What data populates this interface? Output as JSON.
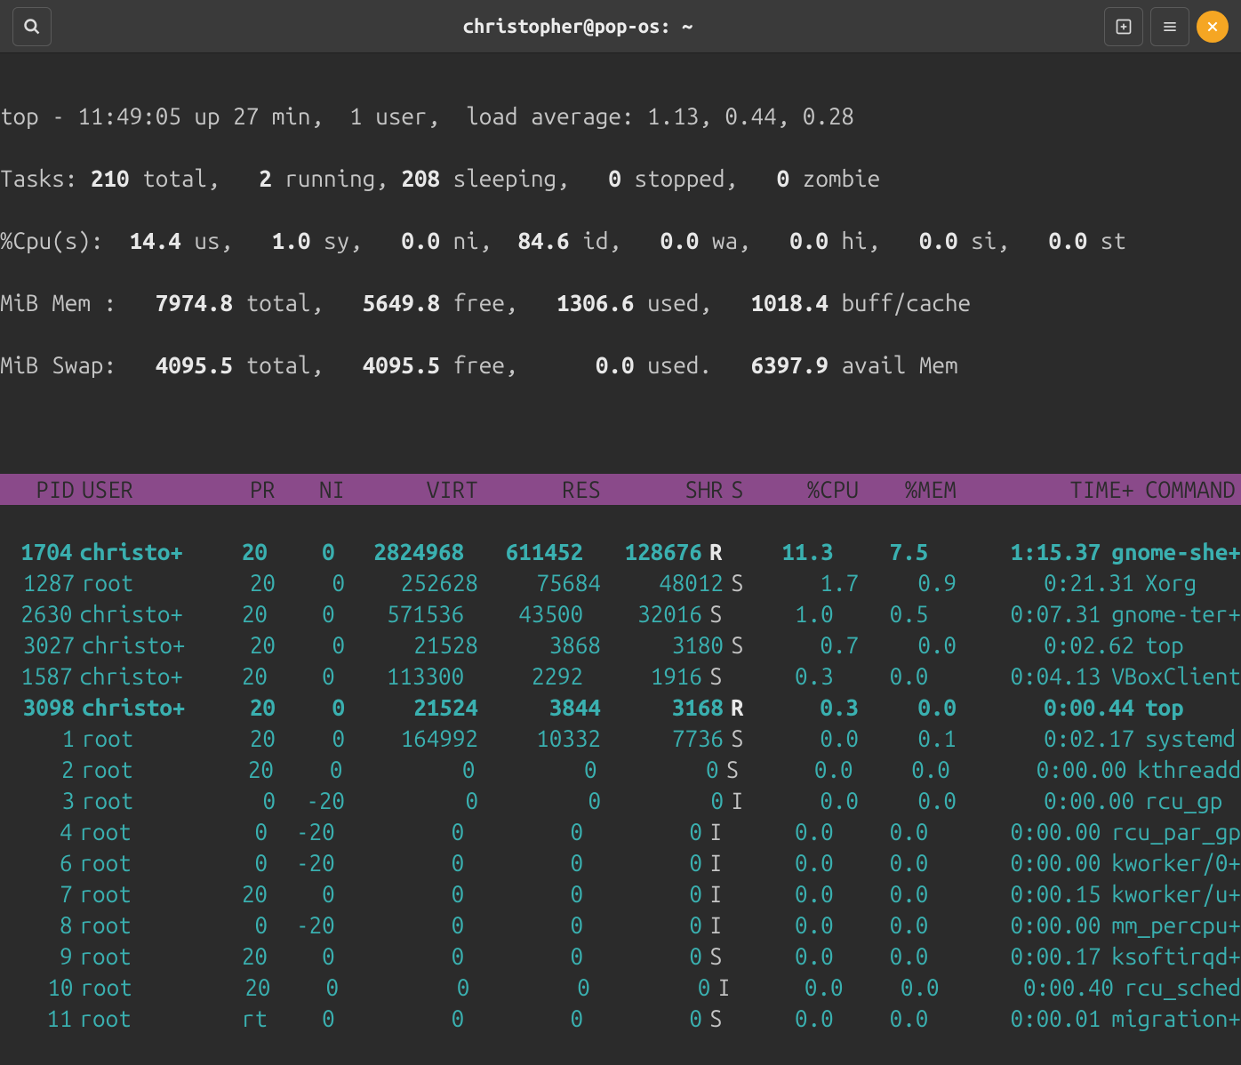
{
  "titlebar": {
    "title": "christopher@pop-os: ~"
  },
  "colors": {
    "background": "#2b2b2b",
    "titlebar_bg": "#3a3a3a",
    "header_bg": "#8a4a8a",
    "text": "#c5c5c5",
    "bright": "#e8e8e8",
    "cyan": "#3ab0b0",
    "close_btn": "#f5a623"
  },
  "summary": {
    "line1_prefix": "top - ",
    "time": "11:49:05",
    "up": " up 27 min,  ",
    "users": "1 user,",
    "load_label": "  load average: ",
    "load": "1.13, 0.44, 0.28",
    "tasks_label": "Tasks: ",
    "tasks_total": "210",
    "tasks_total_label": " total,   ",
    "tasks_running": "2",
    "tasks_running_label": " running, ",
    "tasks_sleeping": "208",
    "tasks_sleeping_label": " sleeping,   ",
    "tasks_stopped": "0",
    "tasks_stopped_label": " stopped,   ",
    "tasks_zombie": "0",
    "tasks_zombie_label": " zombie",
    "cpu_label": "%Cpu(s): ",
    "cpu_us": " 14.4",
    "cpu_us_label": " us,  ",
    "cpu_sy": " 1.0",
    "cpu_sy_label": " sy,  ",
    "cpu_ni": " 0.0",
    "cpu_ni_label": " ni, ",
    "cpu_id": " 84.6",
    "cpu_id_label": " id,  ",
    "cpu_wa": " 0.0",
    "cpu_wa_label": " wa,  ",
    "cpu_hi": " 0.0",
    "cpu_hi_label": " hi,  ",
    "cpu_si": " 0.0",
    "cpu_si_label": " si,  ",
    "cpu_st": " 0.0",
    "cpu_st_label": " st",
    "mem_label": "MiB Mem :   ",
    "mem_total": "7974.8",
    "mem_total_label": " total,   ",
    "mem_free": "5649.8",
    "mem_free_label": " free,   ",
    "mem_used": "1306.6",
    "mem_used_label": " used,   ",
    "mem_cache": "1018.4",
    "mem_cache_label": " buff/cache",
    "swap_label": "MiB Swap:   ",
    "swap_total": "4095.5",
    "swap_total_label": " total,   ",
    "swap_free": "4095.5",
    "swap_free_label": " free,      ",
    "swap_used": "0.0",
    "swap_used_label": " used.   ",
    "swap_avail": "6397.9",
    "swap_avail_label": " avail Mem"
  },
  "columns": {
    "pid": "PID",
    "user": "USER",
    "pr": "PR",
    "ni": "NI",
    "virt": "VIRT",
    "res": "RES",
    "shr": "SHR",
    "s": "S",
    "cpu": "%CPU",
    "mem": "%MEM",
    "time": "TIME+",
    "cmd": "COMMAND"
  },
  "processes": [
    {
      "pid": "1704",
      "user": "christo+",
      "pr": "20",
      "ni": "0",
      "virt": "2824968",
      "res": "611452",
      "shr": "128676",
      "s": "R",
      "cpu": "11.3",
      "mem": "7.5",
      "time": "1:15.37",
      "cmd": "gnome-she+",
      "running": true
    },
    {
      "pid": "1287",
      "user": "root",
      "pr": "20",
      "ni": "0",
      "virt": "252628",
      "res": "75684",
      "shr": "48012",
      "s": "S",
      "cpu": "1.7",
      "mem": "0.9",
      "time": "0:21.31",
      "cmd": "Xorg",
      "running": false
    },
    {
      "pid": "2630",
      "user": "christo+",
      "pr": "20",
      "ni": "0",
      "virt": "571536",
      "res": "43500",
      "shr": "32016",
      "s": "S",
      "cpu": "1.0",
      "mem": "0.5",
      "time": "0:07.31",
      "cmd": "gnome-ter+",
      "running": false
    },
    {
      "pid": "3027",
      "user": "christo+",
      "pr": "20",
      "ni": "0",
      "virt": "21528",
      "res": "3868",
      "shr": "3180",
      "s": "S",
      "cpu": "0.7",
      "mem": "0.0",
      "time": "0:02.62",
      "cmd": "top",
      "running": false
    },
    {
      "pid": "1587",
      "user": "christo+",
      "pr": "20",
      "ni": "0",
      "virt": "113300",
      "res": "2292",
      "shr": "1916",
      "s": "S",
      "cpu": "0.3",
      "mem": "0.0",
      "time": "0:04.13",
      "cmd": "VBoxClient",
      "running": false
    },
    {
      "pid": "3098",
      "user": "christo+",
      "pr": "20",
      "ni": "0",
      "virt": "21524",
      "res": "3844",
      "shr": "3168",
      "s": "R",
      "cpu": "0.3",
      "mem": "0.0",
      "time": "0:00.44",
      "cmd": "top",
      "running": true
    },
    {
      "pid": "1",
      "user": "root",
      "pr": "20",
      "ni": "0",
      "virt": "164992",
      "res": "10332",
      "shr": "7736",
      "s": "S",
      "cpu": "0.0",
      "mem": "0.1",
      "time": "0:02.17",
      "cmd": "systemd",
      "running": false
    },
    {
      "pid": "2",
      "user": "root",
      "pr": "20",
      "ni": "0",
      "virt": "0",
      "res": "0",
      "shr": "0",
      "s": "S",
      "cpu": "0.0",
      "mem": "0.0",
      "time": "0:00.00",
      "cmd": "kthreadd",
      "running": false
    },
    {
      "pid": "3",
      "user": "root",
      "pr": "0",
      "ni": "-20",
      "virt": "0",
      "res": "0",
      "shr": "0",
      "s": "I",
      "cpu": "0.0",
      "mem": "0.0",
      "time": "0:00.00",
      "cmd": "rcu_gp",
      "running": false
    },
    {
      "pid": "4",
      "user": "root",
      "pr": "0",
      "ni": "-20",
      "virt": "0",
      "res": "0",
      "shr": "0",
      "s": "I",
      "cpu": "0.0",
      "mem": "0.0",
      "time": "0:00.00",
      "cmd": "rcu_par_gp",
      "running": false
    },
    {
      "pid": "6",
      "user": "root",
      "pr": "0",
      "ni": "-20",
      "virt": "0",
      "res": "0",
      "shr": "0",
      "s": "I",
      "cpu": "0.0",
      "mem": "0.0",
      "time": "0:00.00",
      "cmd": "kworker/0+",
      "running": false
    },
    {
      "pid": "7",
      "user": "root",
      "pr": "20",
      "ni": "0",
      "virt": "0",
      "res": "0",
      "shr": "0",
      "s": "I",
      "cpu": "0.0",
      "mem": "0.0",
      "time": "0:00.15",
      "cmd": "kworker/u+",
      "running": false
    },
    {
      "pid": "8",
      "user": "root",
      "pr": "0",
      "ni": "-20",
      "virt": "0",
      "res": "0",
      "shr": "0",
      "s": "I",
      "cpu": "0.0",
      "mem": "0.0",
      "time": "0:00.00",
      "cmd": "mm_percpu+",
      "running": false
    },
    {
      "pid": "9",
      "user": "root",
      "pr": "20",
      "ni": "0",
      "virt": "0",
      "res": "0",
      "shr": "0",
      "s": "S",
      "cpu": "0.0",
      "mem": "0.0",
      "time": "0:00.17",
      "cmd": "ksoftirqd+",
      "running": false
    },
    {
      "pid": "10",
      "user": "root",
      "pr": "20",
      "ni": "0",
      "virt": "0",
      "res": "0",
      "shr": "0",
      "s": "I",
      "cpu": "0.0",
      "mem": "0.0",
      "time": "0:00.40",
      "cmd": "rcu_sched",
      "running": false
    },
    {
      "pid": "11",
      "user": "root",
      "pr": "rt",
      "ni": "0",
      "virt": "0",
      "res": "0",
      "shr": "0",
      "s": "S",
      "cpu": "0.0",
      "mem": "0.0",
      "time": "0:00.01",
      "cmd": "migration+",
      "running": false
    }
  ]
}
